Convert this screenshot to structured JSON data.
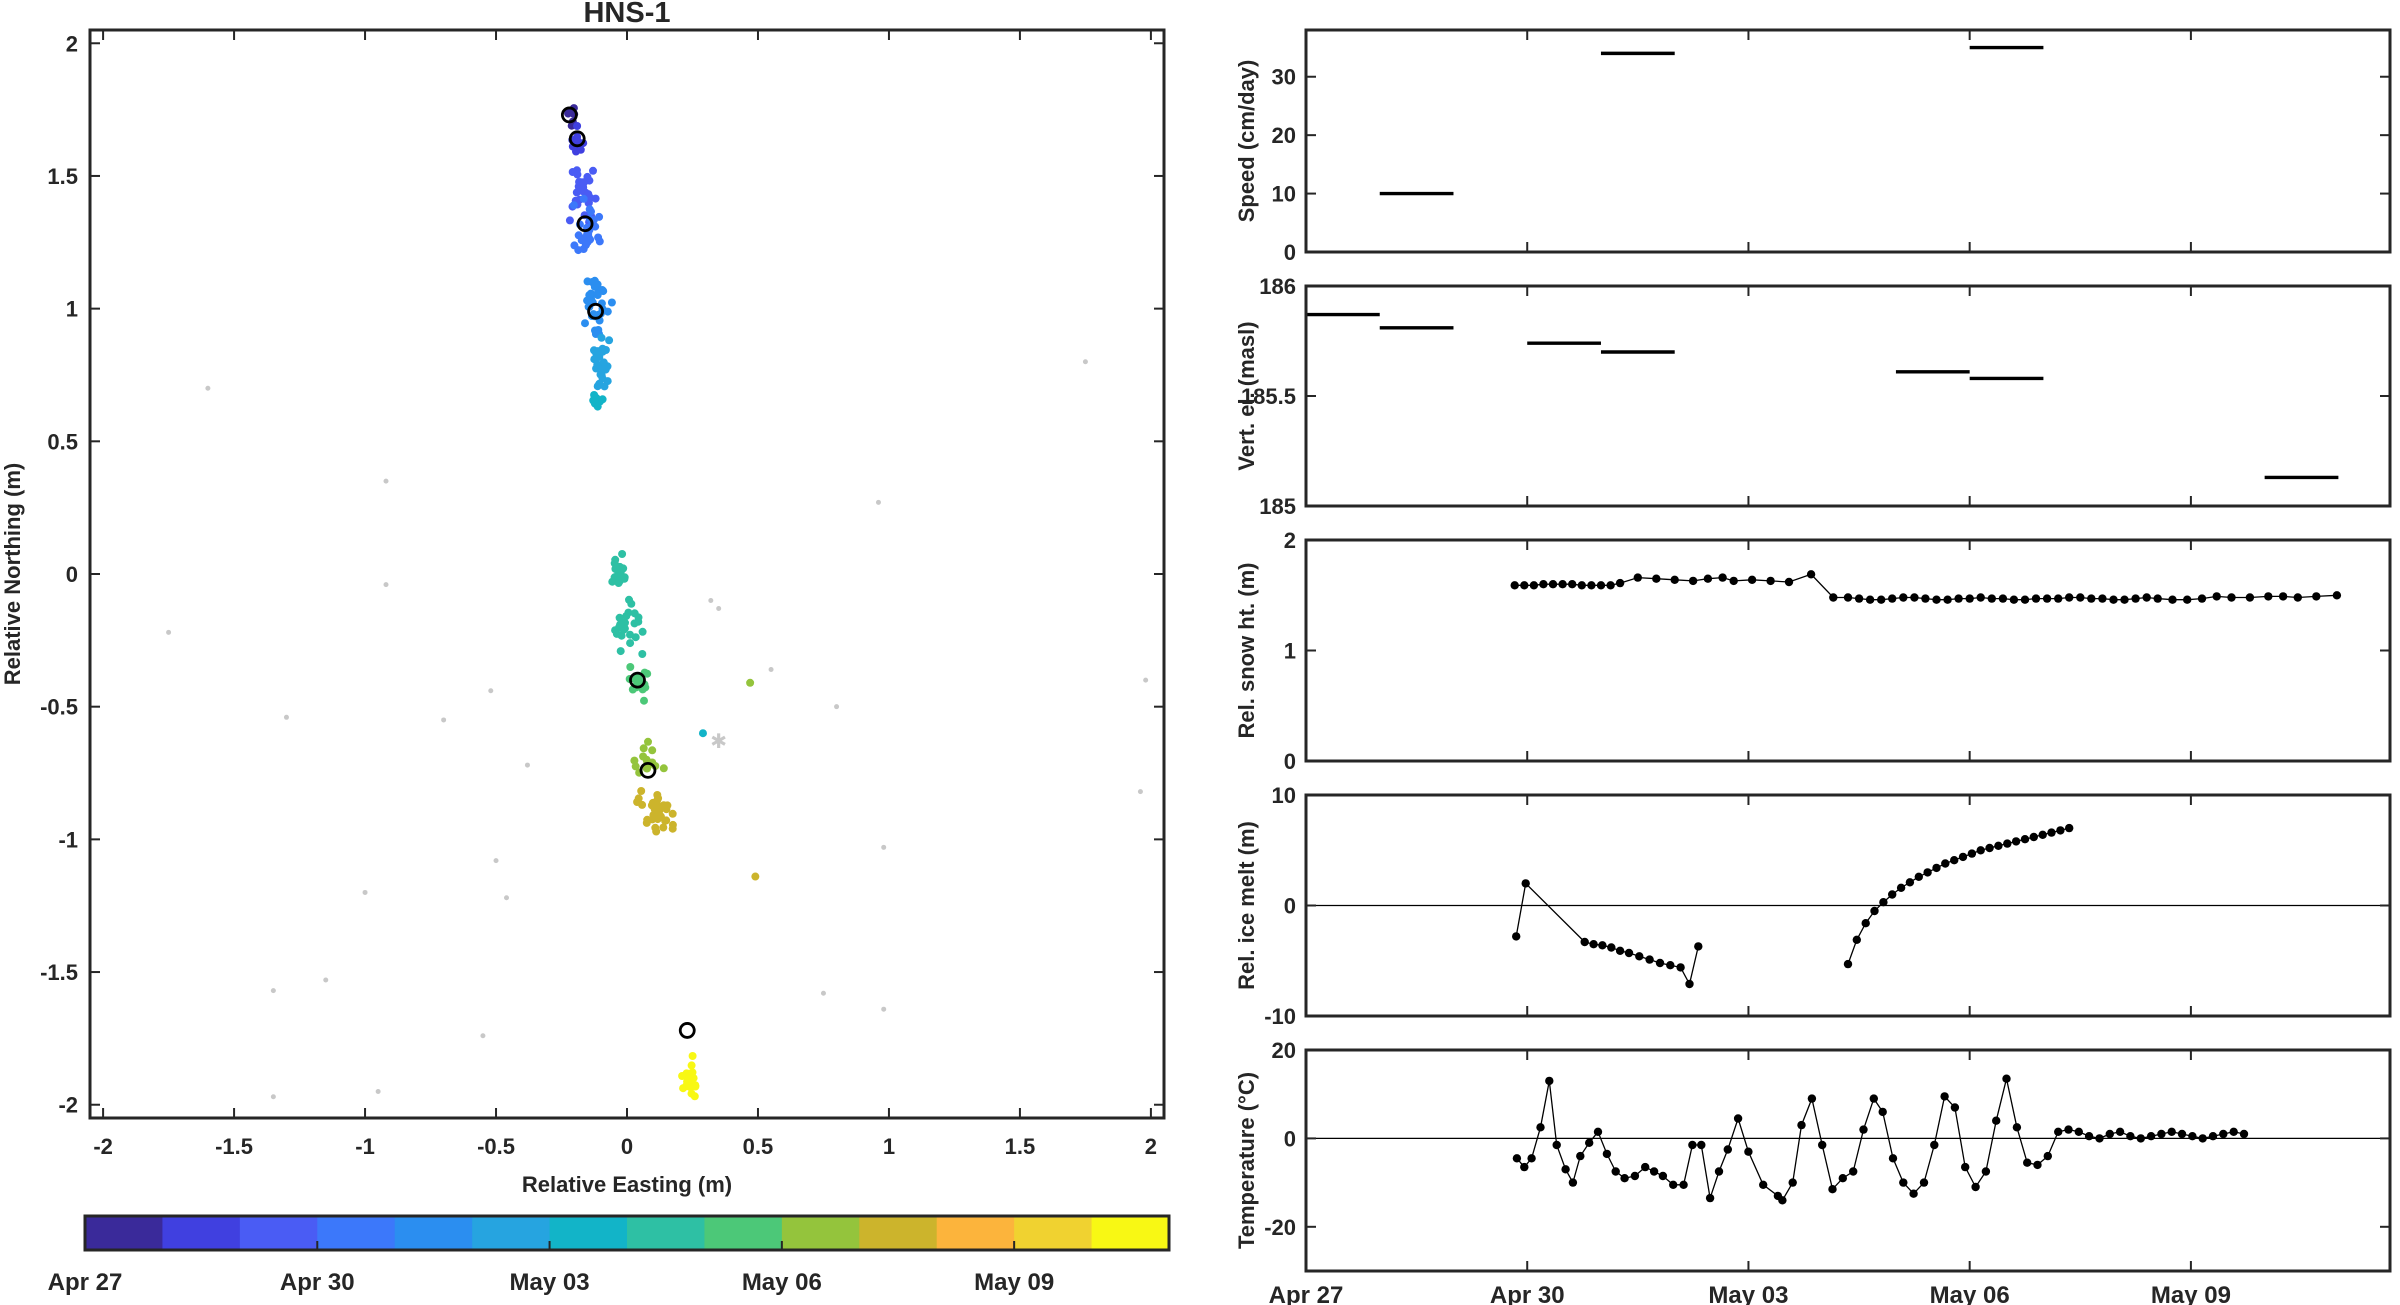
{
  "chart_data": [
    {
      "type": "scatter",
      "title": "HNS-1",
      "xlabel": "Relative Easting (m)",
      "ylabel": "Relative Northing (m)",
      "xlim": [
        -2.05,
        2.05
      ],
      "ylim": [
        -2.05,
        2.05
      ],
      "xticks": [
        -2,
        -1.5,
        -1,
        -0.5,
        0,
        0.5,
        1,
        1.5,
        2
      ],
      "yticks": [
        -2,
        -1.5,
        -1,
        -0.5,
        0,
        0.5,
        1,
        1.5,
        2
      ],
      "xticklabels": [
        "-2",
        "-1.5",
        "-1",
        "-0.5",
        "0",
        "0.5",
        "1",
        "1.5",
        "2"
      ],
      "yticklabels": [
        "-2",
        "-1.5",
        "-1",
        "-0.5",
        "0",
        "0.5",
        "1",
        "1.5",
        "2"
      ],
      "grid": false,
      "colorbar": {
        "colors": [
          "#3a2a9a",
          "#4040e0",
          "#4a5cf4",
          "#3c78fa",
          "#2b8ef0",
          "#26a4e0",
          "#12b4c8",
          "#2ec0a4",
          "#4cc878",
          "#94c43c",
          "#ccb42c",
          "#fcb43c",
          "#f0d230",
          "#f8f814"
        ],
        "ticklabels": [
          "Apr 27",
          "Apr 30",
          "May 03",
          "May 06",
          "May 09"
        ],
        "tick_index": [
          0,
          3,
          6,
          9,
          12
        ]
      },
      "clusters": [
        {
          "x": -0.22,
          "y": 1.74,
          "sx": 0.02,
          "sy": 0.03,
          "n": 8,
          "c": 0
        },
        {
          "x": -0.19,
          "y": 1.64,
          "sx": 0.02,
          "sy": 0.04,
          "n": 12,
          "c": 1
        },
        {
          "x": -0.17,
          "y": 1.45,
          "sx": 0.04,
          "sy": 0.1,
          "n": 30,
          "c": 2
        },
        {
          "x": -0.15,
          "y": 1.3,
          "sx": 0.04,
          "sy": 0.08,
          "n": 30,
          "c": 3
        },
        {
          "x": -0.12,
          "y": 1.0,
          "sx": 0.04,
          "sy": 0.09,
          "n": 34,
          "c": 4
        },
        {
          "x": -0.1,
          "y": 0.8,
          "sx": 0.03,
          "sy": 0.08,
          "n": 26,
          "c": 5
        },
        {
          "x": -0.11,
          "y": 0.65,
          "sx": 0.02,
          "sy": 0.04,
          "n": 10,
          "c": 6
        },
        {
          "x": -0.02,
          "y": 0.0,
          "sx": 0.03,
          "sy": 0.07,
          "n": 16,
          "c": 7
        },
        {
          "x": 0.0,
          "y": -0.22,
          "sx": 0.04,
          "sy": 0.08,
          "n": 24,
          "c": 7
        },
        {
          "x": 0.04,
          "y": -0.42,
          "sx": 0.03,
          "sy": 0.06,
          "n": 16,
          "c": 8
        },
        {
          "x": 0.08,
          "y": -0.7,
          "sx": 0.04,
          "sy": 0.07,
          "n": 16,
          "c": 9
        },
        {
          "x": 0.1,
          "y": -0.88,
          "sx": 0.06,
          "sy": 0.07,
          "n": 36,
          "c": 10
        },
        {
          "x": 0.24,
          "y": -1.9,
          "sx": 0.02,
          "sy": 0.07,
          "n": 20,
          "c": 13
        }
      ],
      "outliers": [
        {
          "x": 0.47,
          "y": -0.41,
          "c": 9
        },
        {
          "x": 0.49,
          "y": -1.14,
          "c": 10
        },
        {
          "x": 0.29,
          "y": -0.6,
          "c": 6
        }
      ],
      "daily_markers": [
        {
          "x": -0.22,
          "y": 1.73
        },
        {
          "x": -0.19,
          "y": 1.64
        },
        {
          "x": -0.16,
          "y": 1.32
        },
        {
          "x": -0.12,
          "y": 0.99
        },
        {
          "x": 0.04,
          "y": -0.4
        },
        {
          "x": 0.08,
          "y": -0.74
        },
        {
          "x": 0.23,
          "y": -1.72
        }
      ],
      "gray_points": [
        {
          "x": -1.6,
          "y": 0.7
        },
        {
          "x": -1.75,
          "y": -0.22
        },
        {
          "x": -1.3,
          "y": -0.54
        },
        {
          "x": -0.92,
          "y": 0.35
        },
        {
          "x": -0.92,
          "y": -0.04
        },
        {
          "x": -0.7,
          "y": -0.55
        },
        {
          "x": -0.52,
          "y": -0.44
        },
        {
          "x": -0.38,
          "y": -0.72
        },
        {
          "x": -0.5,
          "y": -1.08
        },
        {
          "x": -0.46,
          "y": -1.22
        },
        {
          "x": -1.0,
          "y": -1.2
        },
        {
          "x": -1.15,
          "y": -1.53
        },
        {
          "x": -1.35,
          "y": -1.57
        },
        {
          "x": -1.35,
          "y": -1.97
        },
        {
          "x": -0.95,
          "y": -1.95
        },
        {
          "x": -0.55,
          "y": -1.74
        },
        {
          "x": 0.32,
          "y": -0.1
        },
        {
          "x": 0.35,
          "y": -0.13
        },
        {
          "x": 0.55,
          "y": -0.36
        },
        {
          "x": 0.8,
          "y": -0.5
        },
        {
          "x": 0.96,
          "y": 0.27
        },
        {
          "x": 0.98,
          "y": -1.03
        },
        {
          "x": 0.75,
          "y": -1.58
        },
        {
          "x": 0.98,
          "y": -1.64
        },
        {
          "x": 1.75,
          "y": 0.8
        },
        {
          "x": 1.98,
          "y": -0.4
        },
        {
          "x": 1.96,
          "y": -0.82
        }
      ],
      "gray_star": {
        "x": 0.35,
        "y": -0.63
      }
    },
    {
      "type": "step",
      "ylabel": "Speed (cm/day)",
      "ylim": [
        0,
        38
      ],
      "yticks": [
        0,
        10,
        20,
        30
      ],
      "yticklabels": [
        "0",
        "10",
        "20",
        "30"
      ],
      "xlim": [
        0,
        14.7
      ],
      "xticks": [
        0,
        3,
        6,
        9,
        12
      ],
      "segments": [
        {
          "x": [
            1,
            2
          ],
          "y": 10
        },
        {
          "x": [
            4,
            5
          ],
          "y": 34
        },
        {
          "x": [
            9,
            10
          ],
          "y": 35
        }
      ]
    },
    {
      "type": "step",
      "ylabel": "Vert. el. (masl)",
      "ylim": [
        185,
        186
      ],
      "yticks": [
        185,
        185.5,
        186
      ],
      "yticklabels": [
        "185",
        "185.5",
        "186"
      ],
      "xlim": [
        0,
        14.7
      ],
      "xticks": [
        0,
        3,
        6,
        9,
        12
      ],
      "segments": [
        {
          "x": [
            0,
            1
          ],
          "y": 185.87
        },
        {
          "x": [
            1,
            2
          ],
          "y": 185.81
        },
        {
          "x": [
            3,
            4
          ],
          "y": 185.74
        },
        {
          "x": [
            4,
            5
          ],
          "y": 185.7
        },
        {
          "x": [
            8,
            9
          ],
          "y": 185.61
        },
        {
          "x": [
            9,
            10
          ],
          "y": 185.58
        },
        {
          "x": [
            13,
            14
          ],
          "y": 185.13
        }
      ]
    },
    {
      "type": "line",
      "ylabel": "Rel. snow ht. (m)",
      "ylim": [
        0,
        2
      ],
      "yticks": [
        0,
        1,
        2
      ],
      "yticklabels": [
        "0",
        "1",
        "2"
      ],
      "xlim": [
        0,
        14.7
      ],
      "xticks": [
        0,
        3,
        6,
        9,
        12
      ],
      "zero_line": false,
      "series": [
        {
          "x": [
            2.83,
            2.96,
            3.09,
            3.22,
            3.35,
            3.48,
            3.61,
            3.74,
            3.87,
            4.0,
            4.13,
            4.26,
            4.5,
            4.75,
            5.0,
            5.25,
            5.45,
            5.65,
            5.8,
            6.05,
            6.3,
            6.55,
            6.85,
            7.15,
            7.35,
            7.5,
            7.65,
            7.8,
            7.95,
            8.1,
            8.25,
            8.4,
            8.55,
            8.7,
            8.85,
            9.0,
            9.15,
            9.3,
            9.45,
            9.6,
            9.75,
            9.9,
            10.05,
            10.2,
            10.35,
            10.5,
            10.65,
            10.8,
            10.95,
            11.1,
            11.25,
            11.4,
            11.55,
            11.75,
            11.95,
            12.15,
            12.35,
            12.55,
            12.8,
            13.05,
            13.25,
            13.45,
            13.7,
            13.98
          ],
          "y": [
            1.59,
            1.59,
            1.59,
            1.6,
            1.6,
            1.6,
            1.6,
            1.59,
            1.59,
            1.59,
            1.59,
            1.61,
            1.66,
            1.65,
            1.64,
            1.63,
            1.65,
            1.66,
            1.63,
            1.64,
            1.63,
            1.62,
            1.69,
            1.48,
            1.48,
            1.47,
            1.46,
            1.46,
            1.47,
            1.48,
            1.48,
            1.47,
            1.46,
            1.46,
            1.47,
            1.47,
            1.48,
            1.47,
            1.47,
            1.46,
            1.46,
            1.47,
            1.47,
            1.47,
            1.48,
            1.48,
            1.47,
            1.47,
            1.46,
            1.46,
            1.47,
            1.48,
            1.47,
            1.46,
            1.46,
            1.47,
            1.49,
            1.48,
            1.48,
            1.49,
            1.49,
            1.48,
            1.49,
            1.5
          ]
        }
      ]
    },
    {
      "type": "line",
      "ylabel": "Rel. ice melt (m)",
      "ylim": [
        -10,
        10
      ],
      "yticks": [
        -10,
        0,
        10
      ],
      "yticklabels": [
        "-10",
        "0",
        "10"
      ],
      "xlim": [
        0,
        14.7
      ],
      "xticks": [
        0,
        3,
        6,
        9,
        12
      ],
      "zero_line": true,
      "series": [
        {
          "x": [
            2.85,
            2.98,
            3.78,
            3.9,
            4.02,
            4.14,
            4.26,
            4.38,
            4.52,
            4.66,
            4.8,
            4.94,
            5.08,
            5.2,
            5.32
          ],
          "y": [
            -2.8,
            2.0,
            -3.3,
            -3.5,
            -3.6,
            -3.8,
            -4.1,
            -4.3,
            -4.6,
            -4.9,
            -5.2,
            -5.4,
            -5.6,
            -7.1,
            -3.7
          ]
        },
        {
          "x": [
            7.35,
            7.47,
            7.59,
            7.71,
            7.83,
            7.95,
            8.07,
            8.19,
            8.31,
            8.43,
            8.55,
            8.67,
            8.79,
            8.91,
            9.03,
            9.15,
            9.27,
            9.39,
            9.51,
            9.63,
            9.75,
            9.87,
            9.99,
            10.11,
            10.23,
            10.35
          ],
          "y": [
            -5.3,
            -3.1,
            -1.6,
            -0.5,
            0.3,
            1.0,
            1.6,
            2.1,
            2.6,
            3.0,
            3.4,
            3.8,
            4.1,
            4.4,
            4.7,
            5.0,
            5.2,
            5.4,
            5.6,
            5.8,
            6.0,
            6.2,
            6.4,
            6.6,
            6.8,
            7.0
          ]
        }
      ]
    },
    {
      "type": "line",
      "ylabel": "Temperature (°C)",
      "ylim": [
        -30,
        20
      ],
      "yticks": [
        -20,
        0,
        20
      ],
      "yticklabels": [
        "-20",
        "0",
        "20"
      ],
      "xlim": [
        0,
        14.7
      ],
      "xticks": [
        0,
        3,
        6,
        9,
        12
      ],
      "xticklabels": [
        "Apr 27",
        "Apr 30",
        "May 03",
        "May 06",
        "May 09"
      ],
      "zero_line": true,
      "series": [
        {
          "x": [
            2.86,
            2.96,
            3.06,
            3.18,
            3.3,
            3.4,
            3.52,
            3.62,
            3.72,
            3.84,
            3.96,
            4.08,
            4.2,
            4.32,
            4.46,
            4.6,
            4.72,
            4.84,
            4.98,
            5.12,
            5.24,
            5.36,
            5.48,
            5.6,
            5.72,
            5.86,
            6.0,
            6.2,
            6.4,
            6.46,
            6.6,
            6.72,
            6.86,
            7.0,
            7.14,
            7.28,
            7.42,
            7.56,
            7.7,
            7.82,
            7.96,
            8.1,
            8.24,
            8.38,
            8.52,
            8.66,
            8.8,
            8.94,
            9.08,
            9.22,
            9.36,
            9.5,
            9.64,
            9.78,
            9.92,
            10.06,
            10.2,
            10.34,
            10.48,
            10.62,
            10.76,
            10.9,
            11.04,
            11.18,
            11.32,
            11.46,
            11.6,
            11.74,
            11.88,
            12.02,
            12.16,
            12.3,
            12.44,
            12.58,
            12.72
          ],
          "y": [
            -4.5,
            -6.5,
            -4.5,
            2.5,
            13.0,
            -1.5,
            -7.0,
            -10.0,
            -4.0,
            -1.0,
            1.5,
            -3.5,
            -7.5,
            -9.0,
            -8.5,
            -6.5,
            -7.5,
            -8.5,
            -10.5,
            -10.5,
            -1.5,
            -1.5,
            -13.5,
            -7.5,
            -2.5,
            4.5,
            -3.0,
            -10.5,
            -13.0,
            -14.0,
            -10.0,
            3.0,
            9.0,
            -1.5,
            -11.5,
            -9.0,
            -7.5,
            2.0,
            9.0,
            6.0,
            -4.5,
            -10.0,
            -12.5,
            -10.0,
            -1.5,
            9.5,
            7.0,
            -6.5,
            -11.0,
            -7.5,
            4.0,
            13.5,
            2.5,
            -5.5,
            -6.0,
            -4.0,
            1.5,
            2.0,
            1.5,
            0.5,
            0.0,
            1.0,
            1.5,
            0.5,
            0.0,
            0.5,
            1.0,
            1.5,
            1.0,
            0.5,
            0.0,
            0.5,
            1.0,
            1.5,
            1.0
          ]
        }
      ]
    }
  ]
}
